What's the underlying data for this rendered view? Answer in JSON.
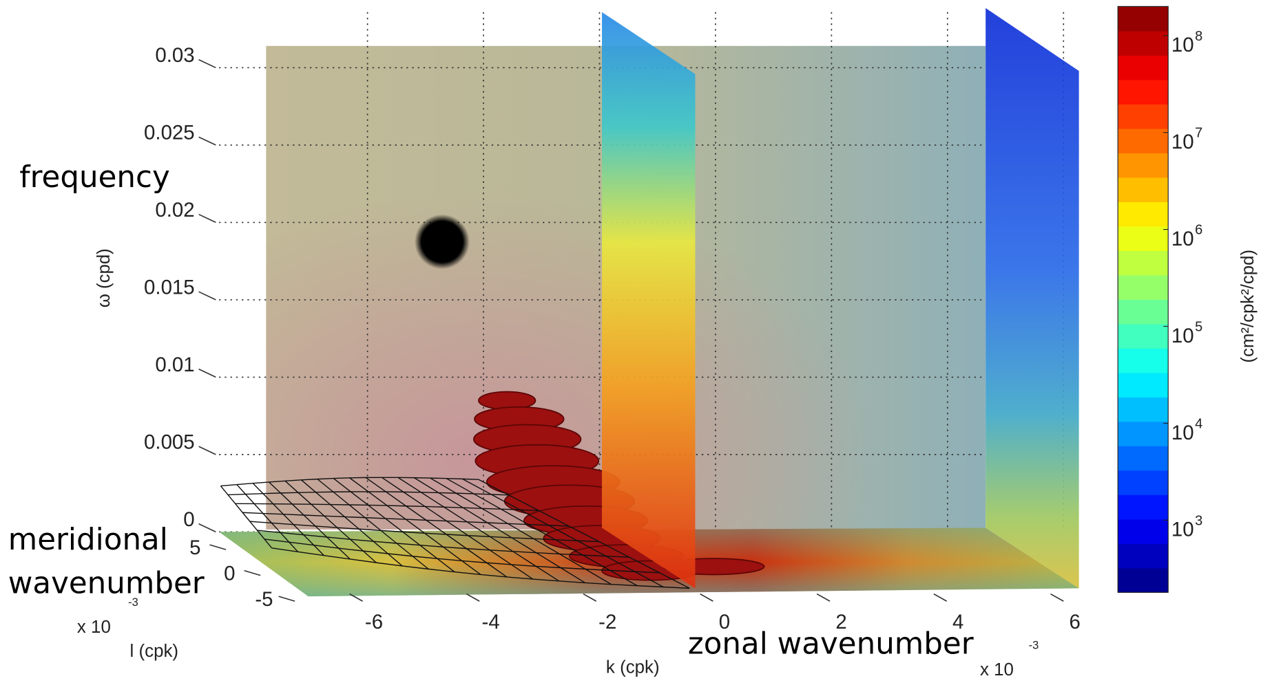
{
  "chart_data": {
    "type": "volume3d",
    "zlabel": "ω (cpd)",
    "zlim": [
      0,
      0.03
    ],
    "zticks": [
      0,
      0.005,
      0.01,
      0.015,
      0.02,
      0.025,
      0.03
    ],
    "xlabel": "k (cpk)",
    "xlim": [
      -8,
      6
    ],
    "xticks": [
      -6,
      -4,
      -2,
      0,
      2,
      4,
      6
    ],
    "x_multiplier": "x 10",
    "x_multiplier_exponent": "-3",
    "ylabel": "l (cpk)",
    "yticks": [
      -5,
      0,
      5
    ],
    "y_multiplier": "x 10",
    "y_multiplier_exponent": "-3",
    "colorbar": {
      "label": "(cm²/cpk²/cpd)",
      "log": true,
      "clim": [
        180,
        200000000
      ],
      "ticks": [
        {
          "value": 1000,
          "label": "10",
          "exponent": "3"
        },
        {
          "value": 10000,
          "label": "10",
          "exponent": "4"
        },
        {
          "value": 100000,
          "label": "10",
          "exponent": "5"
        },
        {
          "value": 1000000,
          "label": "10",
          "exponent": "6"
        },
        {
          "value": 10000000,
          "label": "10",
          "exponent": "7"
        },
        {
          "value": 100000000,
          "label": "10",
          "exponent": "8"
        }
      ]
    },
    "annotations": [
      "frequency",
      "meridional",
      "wavenumber",
      "zonal wavenumber"
    ]
  }
}
